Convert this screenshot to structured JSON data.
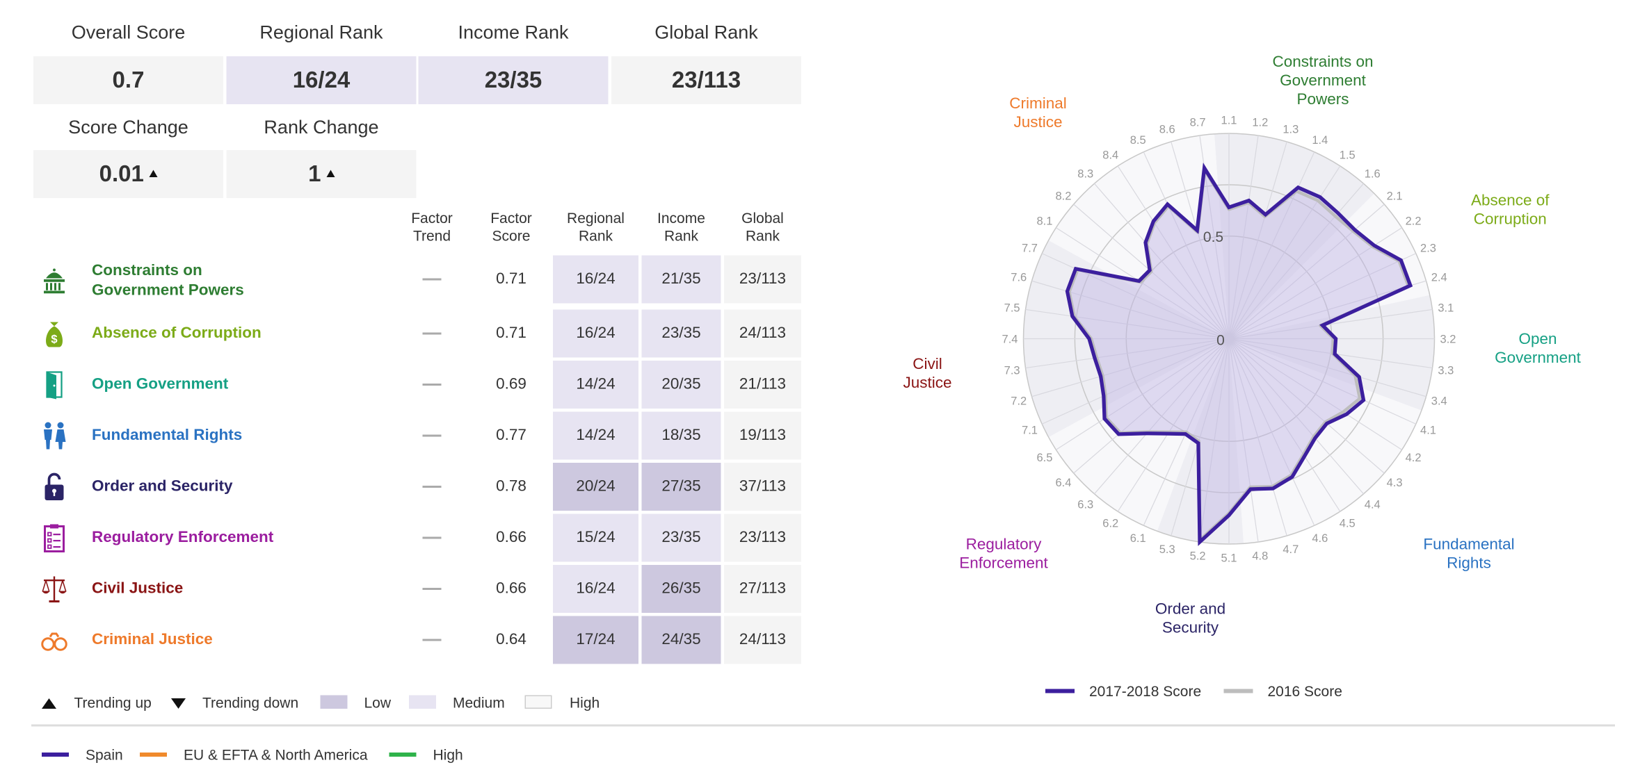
{
  "summary": {
    "overall_score": {
      "label": "Overall Score",
      "value": "0.7"
    },
    "regional_rank": {
      "label": "Regional Rank",
      "value": "16/24"
    },
    "income_rank": {
      "label": "Income Rank",
      "value": "23/35"
    },
    "global_rank": {
      "label": "Global Rank",
      "value": "23/113"
    },
    "score_change": {
      "label": "Score Change",
      "value": "0.01"
    },
    "rank_change": {
      "label": "Rank Change",
      "value": "1"
    }
  },
  "table": {
    "headers": {
      "trend": "Factor Trend",
      "score": "Factor Score",
      "regional": "Regional Rank",
      "income": "Income Rank",
      "global": "Global Rank"
    },
    "rows": [
      {
        "name": "Constraints on Government Powers",
        "name_l1": "Constraints on",
        "name_l2": "Government Powers",
        "color": "#2e7d32",
        "icon": "capitol-icon",
        "score": "0.71",
        "regional": "16/24",
        "income": "21/35",
        "global": "23/113"
      },
      {
        "name": "Absence of Corruption",
        "color": "#7cab18",
        "icon": "money-bag-icon",
        "score": "0.71",
        "regional": "16/24",
        "income": "23/35",
        "global": "24/113"
      },
      {
        "name": "Open Government",
        "color": "#15a084",
        "icon": "open-door-icon",
        "score": "0.69",
        "regional": "14/24",
        "income": "20/35",
        "global": "21/113"
      },
      {
        "name": "Fundamental Rights",
        "color": "#2a72c2",
        "icon": "people-icon",
        "score": "0.77",
        "regional": "14/24",
        "income": "18/35",
        "global": "19/113"
      },
      {
        "name": "Order and Security",
        "color": "#2b2466",
        "icon": "padlock-icon",
        "score": "0.78",
        "regional": "20/24",
        "income": "27/35",
        "global": "37/113"
      },
      {
        "name": "Regulatory Enforcement",
        "color": "#9b1d9f",
        "icon": "clipboard-icon",
        "score": "0.66",
        "regional": "15/24",
        "income": "23/35",
        "global": "23/113"
      },
      {
        "name": "Civil Justice",
        "color": "#8a1414",
        "icon": "scales-icon",
        "score": "0.66",
        "regional": "16/24",
        "income": "26/35",
        "global": "27/113"
      },
      {
        "name": "Criminal Justice",
        "color": "#ee7a2b",
        "icon": "handcuffs-icon",
        "score": "0.64",
        "regional": "17/24",
        "income": "24/35",
        "global": "24/113"
      }
    ]
  },
  "legend_table": {
    "trending_up": "Trending up",
    "trending_down": "Trending down",
    "low": "Low",
    "medium": "Medium",
    "high": "High"
  },
  "legend_bottom": [
    {
      "label": "Spain",
      "color": "#3c1f9e"
    },
    {
      "label": "EU & EFTA & North America",
      "color": "#f08a2c"
    },
    {
      "label": "High",
      "color": "#2fb34a"
    }
  ],
  "colors": {
    "low": "#cdc8df",
    "medium": "#e7e4f2",
    "high": "#f4f4f4",
    "accent": "#3c1f9e"
  },
  "chart_data": {
    "type": "radar",
    "title": "",
    "rlim": [
      0,
      1
    ],
    "ring_label_center": "0",
    "ring_label_mid": "0.5",
    "factor_labels": [
      {
        "name": "Constraints on Government Powers",
        "l1": "Constraints on",
        "l2": "Government",
        "l3": "Powers",
        "color": "#2e7d32"
      },
      {
        "name": "Absence of Corruption",
        "l1": "Absence of",
        "l2": "Corruption",
        "color": "#7cab18"
      },
      {
        "name": "Open Government",
        "l1": "Open",
        "l2": "Government",
        "color": "#15a084"
      },
      {
        "name": "Fundamental Rights",
        "l1": "Fundamental",
        "l2": "Rights",
        "color": "#2a72c2"
      },
      {
        "name": "Order and Security",
        "l1": "Order and",
        "l2": "Security",
        "color": "#2b2466"
      },
      {
        "name": "Regulatory Enforcement",
        "l1": "Regulatory",
        "l2": "Enforcement",
        "color": "#9b1d9f"
      },
      {
        "name": "Civil Justice",
        "l1": "Civil",
        "l2": "Justice",
        "color": "#8a1414"
      },
      {
        "name": "Criminal Justice",
        "l1": "Criminal",
        "l2": "Justice",
        "color": "#ee7a2b"
      }
    ],
    "categories": [
      "1.1",
      "1.2",
      "1.3",
      "1.4",
      "1.5",
      "1.6",
      "2.1",
      "2.2",
      "2.3",
      "2.4",
      "3.1",
      "3.2",
      "3.3",
      "3.4",
      "4.1",
      "4.2",
      "4.3",
      "4.4",
      "4.5",
      "4.6",
      "4.7",
      "4.8",
      "5.1",
      "5.2",
      "5.3",
      "6.1",
      "6.2",
      "6.3",
      "6.4",
      "6.5",
      "7.1",
      "7.2",
      "7.3",
      "7.4",
      "7.5",
      "7.6",
      "7.7",
      "8.1",
      "8.2",
      "8.3",
      "8.4",
      "8.5",
      "8.6",
      "8.7"
    ],
    "series": [
      {
        "name": "2017-2018 Score",
        "color": "#3c1f9e",
        "values": [
          0.64,
          0.68,
          0.63,
          0.81,
          0.82,
          0.81,
          0.81,
          0.84,
          0.92,
          0.92,
          0.46,
          0.52,
          0.52,
          0.66,
          0.72,
          0.68,
          0.63,
          0.64,
          0.68,
          0.74,
          0.76,
          0.74,
          0.86,
          1.0,
          0.53,
          0.51,
          0.55,
          0.61,
          0.71,
          0.72,
          0.67,
          0.65,
          0.66,
          0.68,
          0.77,
          0.82,
          0.82,
          0.52,
          0.51,
          0.62,
          0.68,
          0.72,
          0.55,
          0.84
        ]
      },
      {
        "name": "2016 Score",
        "color": "#bdbdbd",
        "values": [
          0.63,
          0.67,
          0.62,
          0.79,
          0.8,
          0.79,
          0.8,
          0.83,
          0.91,
          0.91,
          0.45,
          0.51,
          0.51,
          0.64,
          0.7,
          0.66,
          0.62,
          0.63,
          0.67,
          0.73,
          0.75,
          0.73,
          0.85,
          0.99,
          0.52,
          0.5,
          0.54,
          0.6,
          0.7,
          0.71,
          0.66,
          0.64,
          0.65,
          0.67,
          0.76,
          0.81,
          0.81,
          0.51,
          0.5,
          0.61,
          0.67,
          0.71,
          0.54,
          0.83
        ]
      }
    ]
  }
}
